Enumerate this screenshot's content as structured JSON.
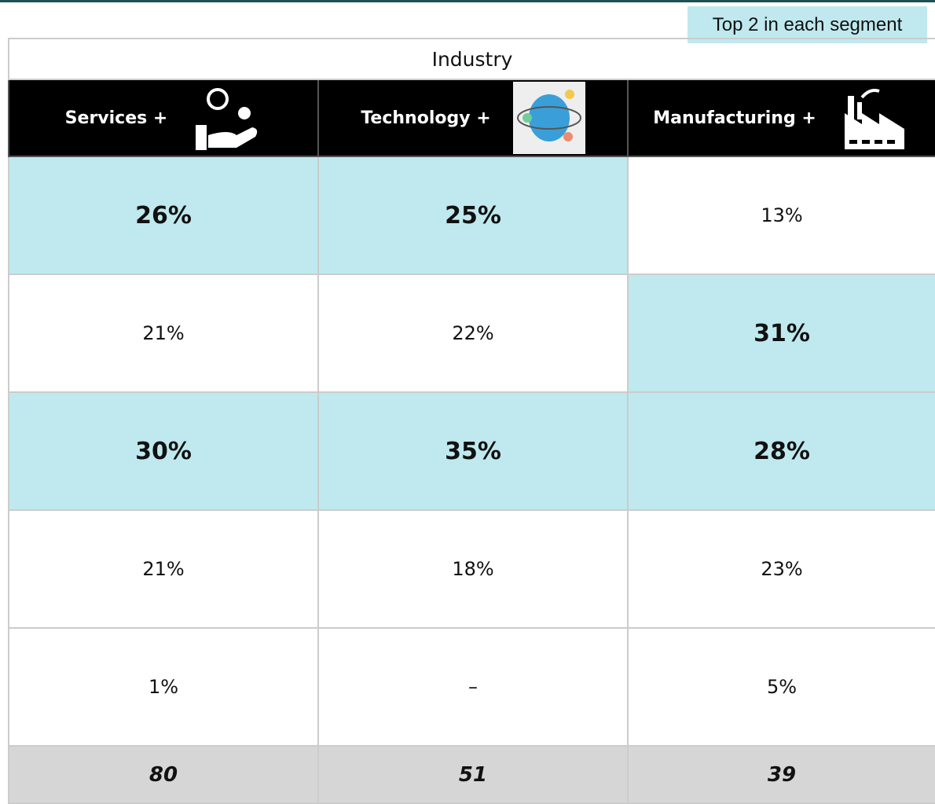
{
  "legend": "Top 2 in each segment",
  "table": {
    "group_header": "Industry",
    "columns": [
      "Services +",
      "Technology +",
      "Manufacturing +"
    ],
    "rows": [
      [
        "26%",
        "25%",
        "13%"
      ],
      [
        "21%",
        "22%",
        "31%"
      ],
      [
        "30%",
        "35%",
        "28%"
      ],
      [
        "21%",
        "18%",
        "23%"
      ],
      [
        "1%",
        "–",
        "5%"
      ]
    ],
    "highlighted": [
      [
        true,
        true,
        false
      ],
      [
        false,
        false,
        true
      ],
      [
        true,
        true,
        true
      ],
      [
        false,
        false,
        false
      ],
      [
        false,
        false,
        false
      ]
    ],
    "highlight_color": "#bfe9ee",
    "totals": [
      80,
      51,
      39
    ]
  }
}
